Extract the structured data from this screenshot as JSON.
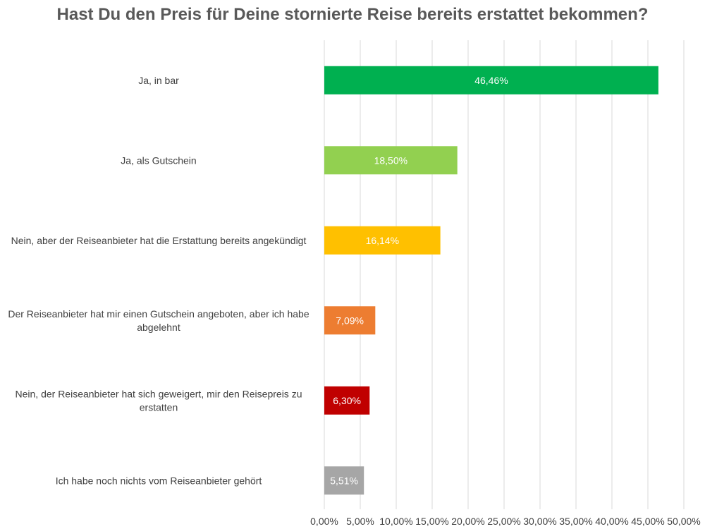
{
  "chart_data": {
    "type": "bar",
    "orientation": "horizontal",
    "title": "Hast Du den Preis für Deine stornierte Reise bereits erstattet bekommen?",
    "categories": [
      [
        "Ja, in bar"
      ],
      [
        "Ja, als Gutschein"
      ],
      [
        "Nein, aber der Reiseanbieter hat die Erstattung bereits angekündigt"
      ],
      [
        "Der Reiseanbieter hat mir einen Gutschein angeboten, aber ich habe",
        "abgelehnt"
      ],
      [
        "Nein, der Reiseanbieter hat sich geweigert, mir den Reisepreis zu",
        "erstatten"
      ],
      [
        "Ich habe noch nichts vom Reiseanbieter gehört"
      ]
    ],
    "values": [
      46.46,
      18.5,
      16.14,
      7.09,
      6.3,
      5.51
    ],
    "data_labels": [
      "46,46%",
      "18,50%",
      "16,14%",
      "7,09%",
      "6,30%",
      "5,51%"
    ],
    "colors": [
      "#00b050",
      "#92d050",
      "#ffc000",
      "#ed7d31",
      "#c00000",
      "#a6a6a6"
    ],
    "xlim": [
      0,
      50
    ],
    "x_ticks": [
      "0,00%",
      "5,00%",
      "10,00%",
      "15,00%",
      "20,00%",
      "25,00%",
      "30,00%",
      "35,00%",
      "40,00%",
      "45,00%",
      "50,00%"
    ],
    "x_tick_values": [
      0,
      5,
      10,
      15,
      20,
      25,
      30,
      35,
      40,
      45,
      50
    ],
    "grid": "vertical",
    "legend": "none"
  }
}
